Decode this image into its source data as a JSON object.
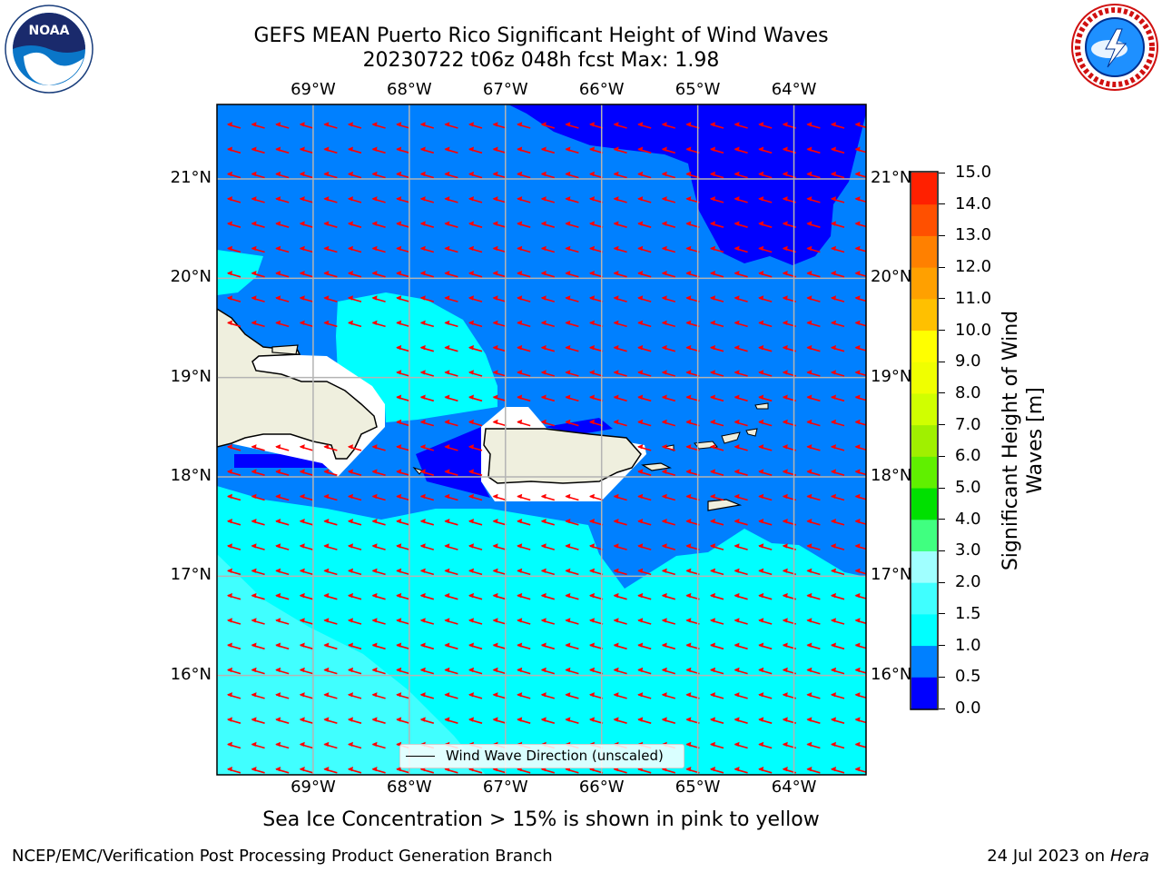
{
  "header": {
    "title_line1": "GEFS MEAN Puerto Rico Significant Height of Wind Waves",
    "title_line2": "20230722 t06z 048h fcst   Max: 1.98"
  },
  "logos": {
    "left": {
      "text": "NOAA",
      "icon": "noaa-logo"
    },
    "right": {
      "icon": "nws-logo"
    }
  },
  "map": {
    "lon_labels": [
      "69°W",
      "68°W",
      "67°W",
      "66°W",
      "65°W",
      "64°W"
    ],
    "lat_labels": [
      "21°N",
      "20°N",
      "19°N",
      "18°N",
      "17°N",
      "16°N"
    ],
    "lon_range": [
      -70.0,
      -63.25
    ],
    "lat_range": [
      15.0,
      21.75
    ],
    "gridlines": true,
    "arrow_color": "#ff0000",
    "land_color": "#efefde"
  },
  "legend": {
    "label": "Wind Wave Direction (unscaled)",
    "placement": "bottom-center"
  },
  "colorbar": {
    "title": "Significant Height of Wind Waves [m]",
    "ticks": [
      "15.0",
      "14.0",
      "13.0",
      "12.0",
      "11.0",
      "10.0",
      "9.0",
      "8.0",
      "7.0",
      "6.0",
      "5.0",
      "4.0",
      "3.0",
      "2.0",
      "1.5",
      "1.0",
      "0.5",
      "0.0"
    ],
    "levels": [
      0.0,
      0.5,
      1.0,
      1.5,
      2.0,
      3.0,
      4.0,
      5.0,
      6.0,
      7.0,
      8.0,
      9.0,
      10.0,
      11.0,
      12.0,
      13.0,
      14.0,
      15.0
    ],
    "colors": [
      "#0000ff",
      "#0080ff",
      "#00ffff",
      "#40ffff",
      "#a0ffff",
      "#40ff80",
      "#00e000",
      "#60f000",
      "#a0f000",
      "#d0ff00",
      "#f0ff00",
      "#ffff00",
      "#ffc000",
      "#ffa000",
      "#ff8000",
      "#ff5000",
      "#ff2000"
    ]
  },
  "footer": {
    "subtitle": "Sea Ice Concentration > 15% is shown in pink to yellow",
    "left": "NCEP/EMC/Verification Post Processing Product Generation Branch",
    "right_date": "24 Jul 2023 on ",
    "right_host": "Hera"
  }
}
